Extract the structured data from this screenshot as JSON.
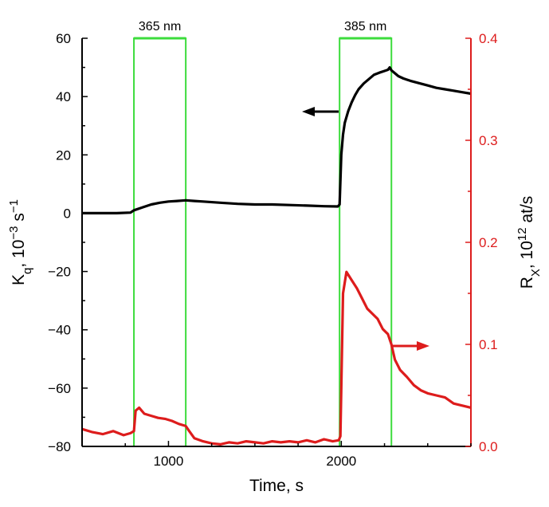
{
  "chart_data": {
    "type": "line",
    "title": "",
    "x_axis": {
      "label": "Time, s",
      "range": [
        500,
        2750
      ],
      "ticks": [
        1000,
        2000
      ],
      "tick_labels": [
        "1000",
        "2000"
      ]
    },
    "y_left": {
      "label_main": "K",
      "label_sub": "q",
      "label_rest": ", 10",
      "label_sup": "−3",
      "label_unit": " s",
      "label_unit_sup": "−1",
      "range": [
        -80,
        60
      ],
      "ticks": [
        60,
        40,
        20,
        0,
        -20,
        -40,
        -60,
        -80
      ],
      "tick_labels": [
        "60",
        "40",
        "20",
        "0",
        "−20",
        "−40",
        "−60",
        "−80"
      ],
      "color": "#000000"
    },
    "y_right": {
      "label_main": "R",
      "label_sub": "X",
      "label_rest": ", 10",
      "label_sup": "12",
      "label_unit": " at/s",
      "range": [
        0.0,
        0.4
      ],
      "ticks": [
        0.4,
        0.3,
        0.2,
        0.1,
        0.0
      ],
      "tick_labels": [
        "0.4",
        "0.3",
        "0.2",
        "0.1",
        "0.0"
      ],
      "color": "#dd1c1c"
    },
    "illumination_windows": [
      {
        "label": "365 nm",
        "start": 800,
        "end": 1100,
        "color": "#3cdc3c"
      },
      {
        "label": "385 nm",
        "start": 1990,
        "end": 2290,
        "color": "#3cdc3c"
      }
    ],
    "series": [
      {
        "axis": "left",
        "color": "#000000",
        "x": [
          500,
          600,
          700,
          780,
          800,
          850,
          900,
          950,
          1000,
          1050,
          1100,
          1150,
          1200,
          1300,
          1400,
          1500,
          1600,
          1700,
          1800,
          1900,
          1980,
          1990,
          2000,
          2010,
          2020,
          2040,
          2060,
          2080,
          2100,
          2130,
          2160,
          2190,
          2220,
          2250,
          2270,
          2280,
          2290,
          2310,
          2330,
          2360,
          2400,
          2450,
          2500,
          2550,
          2600,
          2650,
          2700,
          2750
        ],
        "y": [
          0,
          0,
          0,
          0.2,
          1.0,
          2.0,
          3.0,
          3.6,
          4.0,
          4.2,
          4.4,
          4.2,
          4.0,
          3.6,
          3.2,
          3.0,
          3.0,
          2.8,
          2.6,
          2.4,
          2.3,
          3.0,
          20.0,
          27.0,
          31.0,
          35.0,
          38.0,
          40.5,
          42.5,
          44.5,
          46.0,
          47.5,
          48.2,
          48.8,
          49.2,
          50.0,
          49.0,
          48.0,
          47.0,
          46.2,
          45.4,
          44.6,
          43.8,
          43.0,
          42.5,
          42.0,
          41.5,
          41.0
        ]
      },
      {
        "axis": "right",
        "color": "#dd1c1c",
        "x": [
          500,
          560,
          620,
          680,
          740,
          780,
          800,
          810,
          830,
          860,
          900,
          940,
          980,
          1020,
          1060,
          1100,
          1120,
          1150,
          1200,
          1250,
          1300,
          1350,
          1400,
          1450,
          1500,
          1550,
          1600,
          1650,
          1700,
          1750,
          1800,
          1850,
          1900,
          1950,
          1985,
          1995,
          2010,
          2030,
          2060,
          2090,
          2120,
          2150,
          2180,
          2210,
          2240,
          2270,
          2290,
          2310,
          2340,
          2380,
          2420,
          2460,
          2500,
          2550,
          2600,
          2650,
          2700,
          2750
        ],
        "y": [
          0.017,
          0.014,
          0.012,
          0.015,
          0.011,
          0.013,
          0.015,
          0.035,
          0.038,
          0.032,
          0.03,
          0.028,
          0.027,
          0.025,
          0.022,
          0.02,
          0.015,
          0.008,
          0.005,
          0.003,
          0.002,
          0.004,
          0.003,
          0.005,
          0.004,
          0.003,
          0.005,
          0.004,
          0.005,
          0.004,
          0.006,
          0.004,
          0.007,
          0.005,
          0.006,
          0.01,
          0.15,
          0.171,
          0.163,
          0.155,
          0.145,
          0.135,
          0.13,
          0.125,
          0.115,
          0.11,
          0.1,
          0.085,
          0.075,
          0.068,
          0.06,
          0.055,
          0.052,
          0.05,
          0.048,
          0.042,
          0.04,
          0.038
        ]
      }
    ],
    "arrows": [
      {
        "direction": "left",
        "axis": "left",
        "color": "#000000"
      },
      {
        "direction": "right",
        "axis": "right",
        "color": "#dd1c1c"
      }
    ]
  }
}
